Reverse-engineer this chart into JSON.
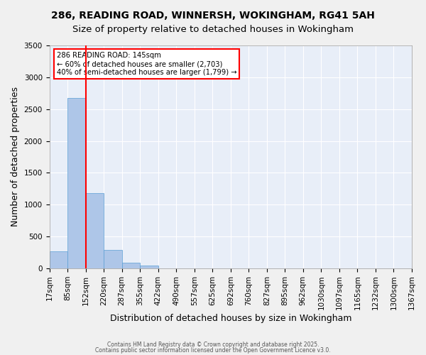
{
  "title1": "286, READING ROAD, WINNERSH, WOKINGHAM, RG41 5AH",
  "title2": "Size of property relative to detached houses in Wokingham",
  "xlabel": "Distribution of detached houses by size in Wokingham",
  "ylabel": "Number of detached properties",
  "bin_labels": [
    "17sqm",
    "85sqm",
    "152sqm",
    "220sqm",
    "287sqm",
    "355sqm",
    "422sqm",
    "490sqm",
    "557sqm",
    "625sqm",
    "692sqm",
    "760sqm",
    "827sqm",
    "895sqm",
    "962sqm",
    "1030sqm",
    "1097sqm",
    "1165sqm",
    "1232sqm",
    "1300sqm",
    "1367sqm"
  ],
  "bar_values": [
    270,
    2680,
    1180,
    285,
    90,
    40,
    0,
    0,
    0,
    0,
    0,
    0,
    0,
    0,
    0,
    0,
    0,
    0,
    0,
    0
  ],
  "bar_color": "#aec6e8",
  "bar_edgecolor": "#5a9fd4",
  "bg_color": "#e8eef8",
  "grid_color": "#ffffff",
  "redline_x": 2,
  "redline_label": "286 READING ROAD: 145sqm",
  "annotation_line2": "← 60% of detached houses are smaller (2,703)",
  "annotation_line3": "40% of semi-detached houses are larger (1,799) →",
  "ylim": [
    0,
    3500
  ],
  "yticks": [
    0,
    500,
    1000,
    1500,
    2000,
    2500,
    3000,
    3500
  ],
  "footer1": "Contains HM Land Registry data © Crown copyright and database right 2025.",
  "footer2": "Contains public sector information licensed under the Open Government Licence v3.0.",
  "title_fontsize": 10,
  "axis_fontsize": 9,
  "tick_fontsize": 7.5
}
